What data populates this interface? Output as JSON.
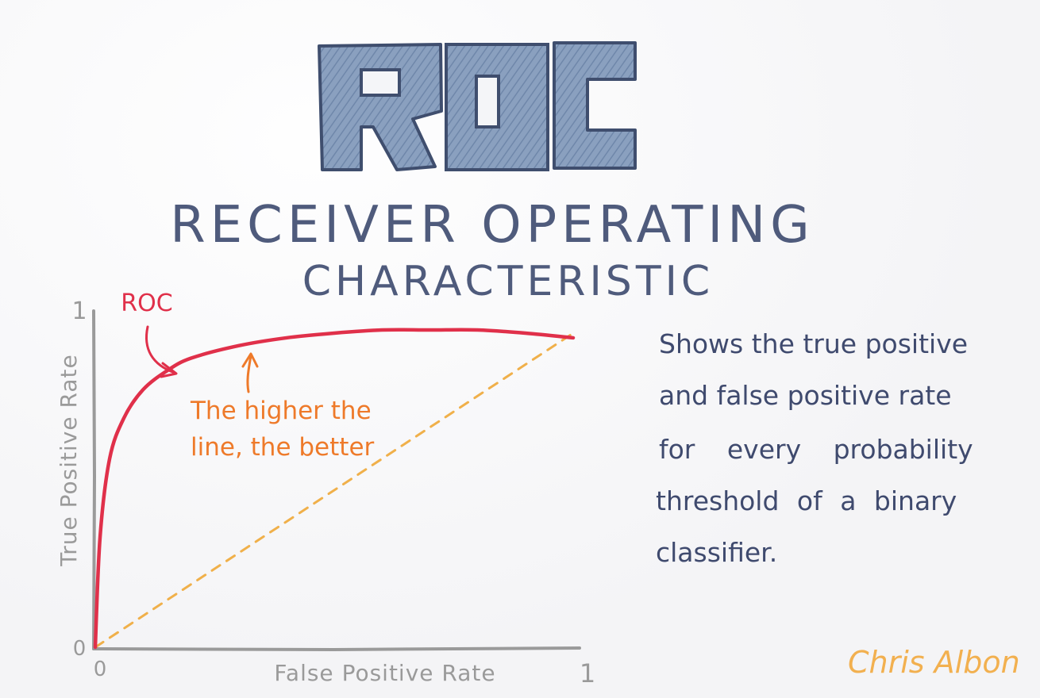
{
  "logo": {
    "text": "ROC",
    "color_fill": "#7f97b8",
    "color_outline": "#4a5a7a"
  },
  "title": {
    "line1": "RECEIVER OPERATING",
    "line2": "CHARACTERISTIC",
    "color": "#4f5b7c"
  },
  "chart": {
    "y_axis_label": "True Positive Rate",
    "x_axis_label": "False Positive Rate",
    "y_tick_top": "1",
    "y_tick_bottom": "0",
    "x_tick_left": "0",
    "x_tick_right": "1",
    "axis_color": "#9a9a9a",
    "roc_label": "ROC",
    "roc_color": "#e0304a",
    "diagonal_color": "#f0b04a",
    "annotation_line1": "The higher the",
    "annotation_line2": "line, the better",
    "annotation_color": "#ee7a2a"
  },
  "chart_data": {
    "type": "line",
    "xlabel": "False Positive Rate",
    "ylabel": "True Positive Rate",
    "xlim": [
      0,
      1
    ],
    "ylim": [
      0,
      1
    ],
    "series": [
      {
        "name": "ROC",
        "x": [
          0,
          0.01,
          0.03,
          0.06,
          0.1,
          0.15,
          0.2,
          0.3,
          0.4,
          0.5,
          0.6,
          0.7,
          0.8,
          0.9,
          1.0
        ],
        "y": [
          0,
          0.35,
          0.6,
          0.73,
          0.82,
          0.88,
          0.92,
          0.96,
          0.985,
          1.0,
          1.01,
          1.01,
          1.01,
          1.0,
          0.985
        ]
      },
      {
        "x": [
          0,
          1
        ],
        "y": [
          0,
          1
        ]
      }
    ]
  },
  "description": {
    "line1": "Shows the true positive",
    "line2": "and false positive rate",
    "line3": "for every probability",
    "line4": "threshold of a binary",
    "line5": "classifier.",
    "color": "#3f4a6e"
  },
  "signature": {
    "text": "Chris Albon",
    "color": "#f2b04f"
  }
}
